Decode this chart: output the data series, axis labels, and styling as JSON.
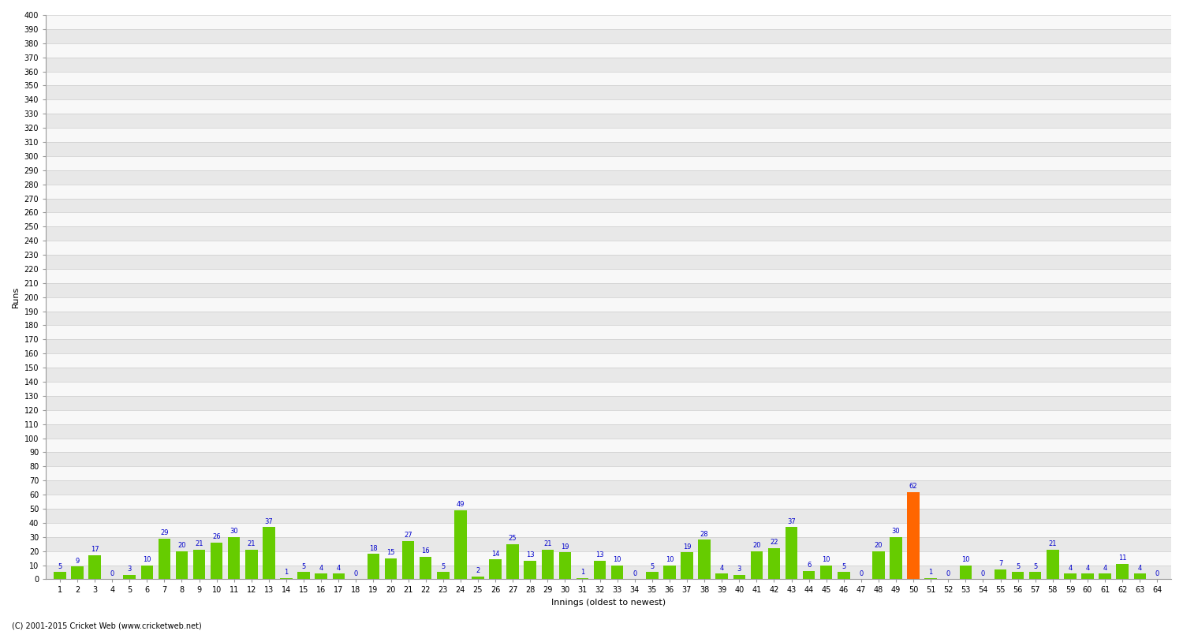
{
  "title": "",
  "xlabel": "Innings (oldest to newest)",
  "ylabel": "Runs",
  "values": [
    5,
    9,
    17,
    0,
    3,
    10,
    29,
    20,
    21,
    26,
    30,
    21,
    37,
    1,
    5,
    4,
    4,
    0,
    18,
    15,
    27,
    16,
    5,
    49,
    2,
    14,
    25,
    13,
    21,
    19,
    1,
    13,
    10,
    0,
    5,
    10,
    19,
    28,
    4,
    3,
    20,
    22,
    37,
    6,
    10,
    5,
    0,
    20,
    30,
    62,
    1,
    0,
    10,
    0,
    7,
    5,
    5,
    21,
    4,
    4,
    4,
    11,
    4,
    0
  ],
  "innings": [
    1,
    2,
    3,
    4,
    5,
    6,
    7,
    8,
    9,
    10,
    11,
    12,
    13,
    14,
    15,
    16,
    17,
    18,
    19,
    20,
    21,
    22,
    23,
    24,
    25,
    26,
    27,
    28,
    29,
    30,
    31,
    32,
    33,
    34,
    35,
    36,
    37,
    38,
    39,
    40,
    41,
    42,
    43,
    44,
    45,
    46,
    47,
    48,
    49,
    50,
    51,
    52,
    53,
    54,
    55,
    56,
    57,
    58,
    59,
    60,
    61,
    62,
    63,
    64
  ],
  "highlight_index": 49,
  "bar_color_normal": "#66cc00",
  "bar_color_highlight": "#ff6600",
  "label_color": "#0000cc",
  "background_color": "#ffffff",
  "plot_bg_color": "#f0f0f0",
  "grid_color": "#cccccc",
  "ylim": [
    0,
    400
  ],
  "ytick_step": 10,
  "axis_label_fontsize": 8,
  "tick_fontsize": 7,
  "value_label_fontsize": 6,
  "footer": "(C) 2001-2015 Cricket Web (www.cricketweb.net)"
}
